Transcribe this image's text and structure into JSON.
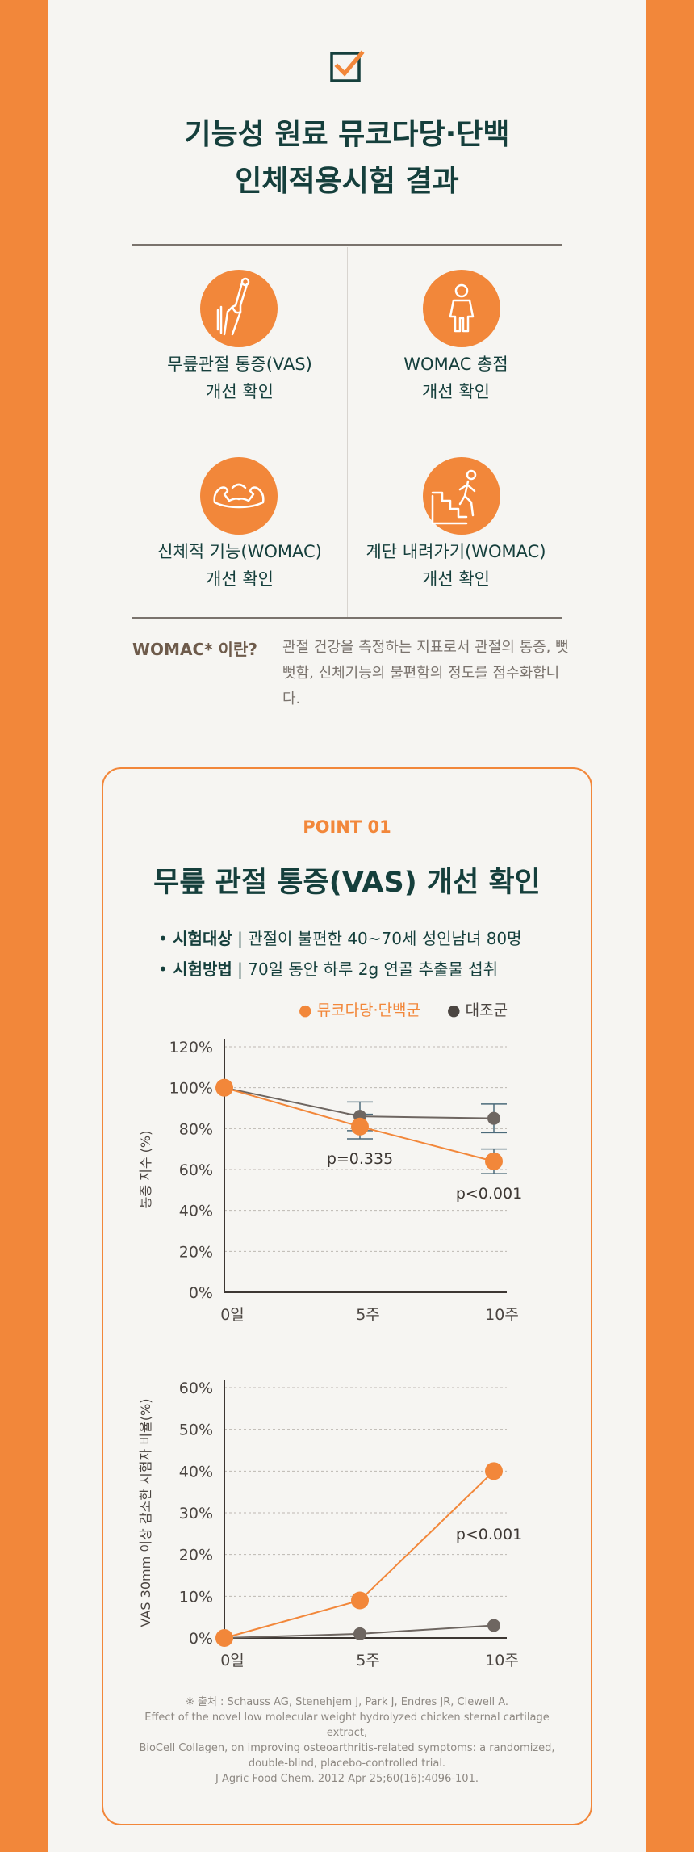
{
  "header": {
    "title_line1": "기능성 원료 뮤코다당·단백",
    "title_line2": "인체적용시험 결과",
    "check_icon": "checkbox-check-icon"
  },
  "benefits": [
    {
      "icon": "knee-joint-icon",
      "line1": "무릎관절 통증(VAS)",
      "line2": "개선 확인"
    },
    {
      "icon": "person-icon",
      "line1": "WOMAC 총점",
      "line2": "개선 확인"
    },
    {
      "icon": "flexed-arms-icon",
      "line1": "신체적 기능(WOMAC)",
      "line2": "개선 확인"
    },
    {
      "icon": "stairs-walking-icon",
      "line1": "계단 내려가기(WOMAC)",
      "line2": "개선 확인"
    }
  ],
  "womac": {
    "question": "WOMAC* 이란?",
    "answer": "관절 건강을 측정하는 지표로서 관절의 통증, 뻣뻣함, 신체기능의 불편함의 정도를 점수화합니다."
  },
  "point": {
    "label": "POINT 01",
    "title": "무릎 관절 통증(VAS) 개선 확인",
    "subject_label": "시험대상",
    "subject_text": " | 관절이 불편한 40~70세 성인남녀 80명",
    "method_label": "시험방법",
    "method_text": " | 70일 동안 하루 2g 연골 추출물 섭취"
  },
  "legend": {
    "treatment": "● 뮤코다당·단백군",
    "control": "● 대조군"
  },
  "colors": {
    "orange": "#f2873a",
    "gray": "#6e6661",
    "dark": "#153f3c"
  },
  "chart_data": [
    {
      "type": "line",
      "ylabel": "통증 지수 (%)",
      "ylim": [
        0,
        120
      ],
      "yticks": [
        "0%",
        "20%",
        "40%",
        "60%",
        "80%",
        "100%",
        "120%"
      ],
      "categories": [
        "0일",
        "5주",
        "10주"
      ],
      "series": [
        {
          "name": "뮤코다당·단백군",
          "values": [
            100,
            81,
            64
          ],
          "color": "#f2873a"
        },
        {
          "name": "대조군",
          "values": [
            100,
            86,
            85
          ],
          "color": "#6e6661"
        }
      ],
      "annotations": [
        "p=0.335",
        "p<0.001"
      ]
    },
    {
      "type": "line",
      "ylabel": "VAS 30mm 이상 감소한 시험자 비율(%)",
      "ylim": [
        0,
        60
      ],
      "yticks": [
        "0%",
        "10%",
        "20%",
        "30%",
        "40%",
        "50%",
        "60%"
      ],
      "categories": [
        "0일",
        "5주",
        "10주"
      ],
      "series": [
        {
          "name": "뮤코다당·단백군",
          "values": [
            0,
            9,
            40
          ],
          "color": "#f2873a"
        },
        {
          "name": "대조군",
          "values": [
            0,
            1,
            3
          ],
          "color": "#6e6661"
        }
      ],
      "annotations": [
        "p<0.001"
      ]
    }
  ],
  "source": {
    "line1": "※ 출처 : Schauss AG, Stenehjem J, Park J, Endres JR, Clewell A.",
    "line2": "Effect of the novel low molecular weight hydrolyzed chicken sternal cartilage extract,",
    "line3": "BioCell Collagen, on improving osteoarthritis-related symptoms: a randomized,",
    "line4": "double-blind, placebo-controlled trial.",
    "line5": "J Agric Food Chem. 2012 Apr 25;60(16):4096-101."
  }
}
